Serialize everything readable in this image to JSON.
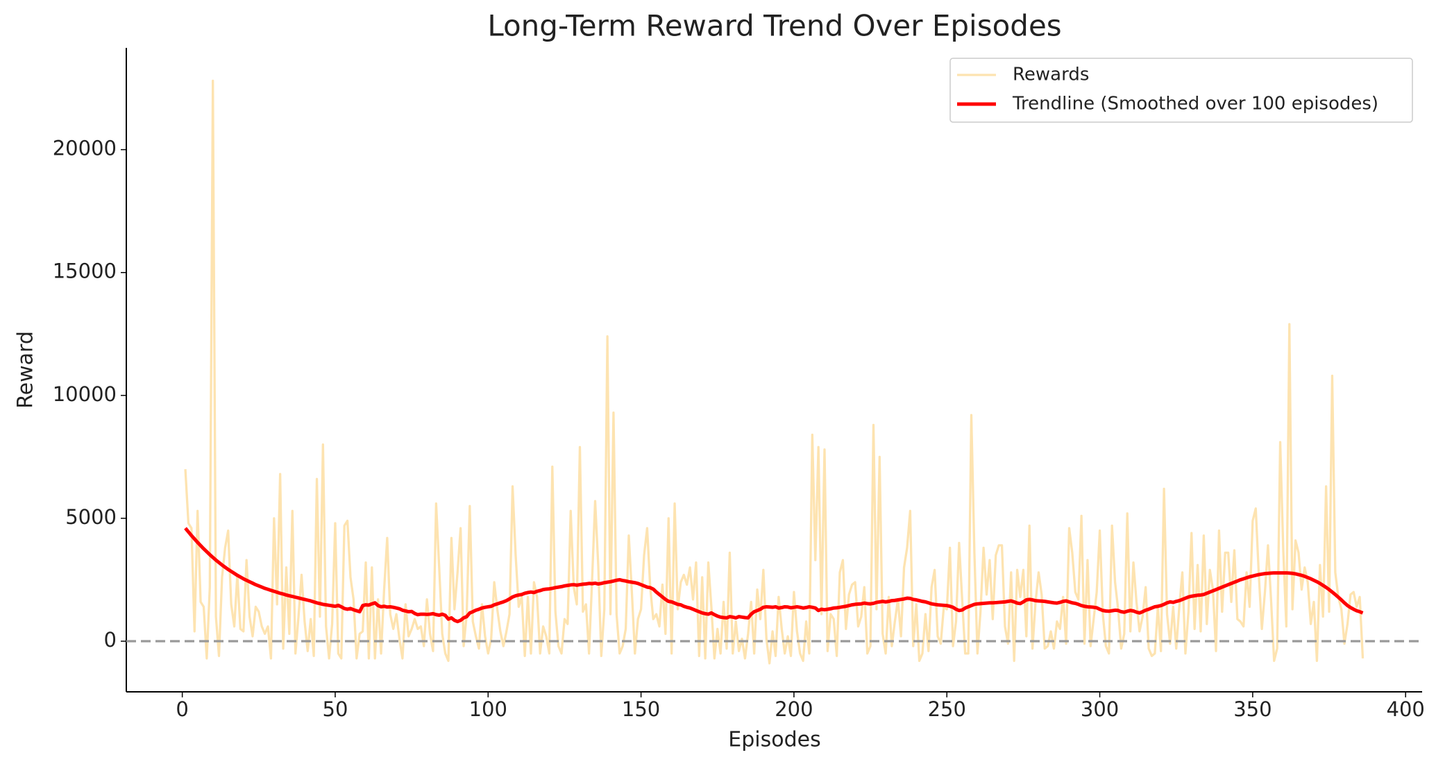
{
  "chart_data": {
    "type": "line",
    "title": "Long-Term Reward Trend Over Episodes",
    "xlabel": "Episodes",
    "ylabel": "Reward",
    "xlim": [
      -18.3,
      405.4
    ],
    "ylim": [
      -2060,
      24140
    ],
    "xticks": [
      0,
      50,
      100,
      150,
      200,
      250,
      300,
      350,
      400
    ],
    "yticks": [
      0,
      5000,
      10000,
      15000,
      20000
    ],
    "baseline": 0,
    "baseline_color": "#999999",
    "legend": "upper right",
    "x": [
      1,
      2,
      3,
      4,
      5,
      6,
      7,
      8,
      9,
      10,
      11,
      12,
      13,
      14,
      15,
      16,
      17,
      18,
      19,
      20,
      21,
      22,
      23,
      24,
      25,
      26,
      27,
      28,
      29,
      30,
      31,
      32,
      33,
      34,
      35,
      36,
      37,
      38,
      39,
      40,
      41,
      42,
      43,
      44,
      45,
      46,
      47,
      48,
      49,
      50,
      51,
      52,
      53,
      54,
      55,
      56,
      57,
      58,
      59,
      60,
      61,
      62,
      63,
      64,
      65,
      66,
      67,
      68,
      69,
      70,
      71,
      72,
      73,
      74,
      75,
      76,
      77,
      78,
      79,
      80,
      81,
      82,
      83,
      84,
      85,
      86,
      87,
      88,
      89,
      90,
      91,
      92,
      93,
      94,
      95,
      96,
      97,
      98,
      99,
      100,
      101,
      102,
      103,
      104,
      105,
      106,
      107,
      108,
      109,
      110,
      111,
      112,
      113,
      114,
      115,
      116,
      117,
      118,
      119,
      120,
      121,
      122,
      123,
      124,
      125,
      126,
      127,
      128,
      129,
      130,
      131,
      132,
      133,
      134,
      135,
      136,
      137,
      138,
      139,
      140,
      141,
      142,
      143,
      144,
      145,
      146,
      147,
      148,
      149,
      150,
      151,
      152,
      153,
      154,
      155,
      156,
      157,
      158,
      159,
      160,
      161,
      162,
      163,
      164,
      165,
      166,
      167,
      168,
      169,
      170,
      171,
      172,
      173,
      174,
      175,
      176,
      177,
      178,
      179,
      180,
      181,
      182,
      183,
      184,
      185,
      186,
      187,
      188,
      189,
      190,
      191,
      192,
      193,
      194,
      195,
      196,
      197,
      198,
      199,
      200,
      201,
      202,
      203,
      204,
      205,
      206,
      207,
      208,
      209,
      210,
      211,
      212,
      213,
      214,
      215,
      216,
      217,
      218,
      219,
      220,
      221,
      222,
      223,
      224,
      225,
      226,
      227,
      228,
      229,
      230,
      231,
      232,
      233,
      234,
      235,
      236,
      237,
      238,
      239,
      240,
      241,
      242,
      243,
      244,
      245,
      246,
      247,
      248,
      249,
      250,
      251,
      252,
      253,
      254,
      255,
      256,
      257,
      258,
      259,
      260,
      261,
      262,
      263,
      264,
      265,
      266,
      267,
      268,
      269,
      270,
      271,
      272,
      273,
      274,
      275,
      276,
      277,
      278,
      279,
      280,
      281,
      282,
      283,
      284,
      285,
      286,
      287,
      288,
      289,
      290,
      291,
      292,
      293,
      294,
      295,
      296,
      297,
      298,
      299,
      300,
      301,
      302,
      303,
      304,
      305,
      306,
      307,
      308,
      309,
      310,
      311,
      312,
      313,
      314,
      315,
      316,
      317,
      318,
      319,
      320,
      321,
      322,
      323,
      324,
      325,
      326,
      327,
      328,
      329,
      330,
      331,
      332,
      333,
      334,
      335,
      336,
      337,
      338,
      339,
      340,
      341,
      342,
      343,
      344,
      345,
      346,
      347,
      348,
      349,
      350,
      351,
      352,
      353,
      354,
      355,
      356,
      357,
      358,
      359,
      360,
      361,
      362,
      363,
      364,
      365,
      366,
      367,
      368,
      369,
      370,
      371,
      372,
      373,
      374,
      375,
      376,
      377,
      378,
      379,
      380,
      381,
      382,
      383,
      384,
      385,
      386
    ],
    "series": [
      {
        "name": "Rewards",
        "color": "#fde3b0",
        "values": [
          7000,
          4800,
          4600,
          400,
          5300,
          1600,
          1400,
          -700,
          2200,
          22800,
          1000,
          -600,
          2600,
          3800,
          4500,
          1500,
          600,
          2700,
          500,
          400,
          3300,
          1000,
          200,
          1400,
          1200,
          600,
          300,
          600,
          -700,
          5000,
          1500,
          6800,
          -300,
          3000,
          300,
          5300,
          -500,
          1000,
          2700,
          800,
          -400,
          900,
          -600,
          6600,
          1000,
          8000,
          600,
          -700,
          700,
          4800,
          -500,
          -700,
          4700,
          4900,
          2600,
          1700,
          -700,
          300,
          400,
          3200,
          -700,
          3000,
          -700,
          1700,
          -500,
          2100,
          4200,
          1100,
          500,
          1100,
          100,
          -700,
          1500,
          200,
          500,
          900,
          500,
          600,
          -200,
          1700,
          300,
          -400,
          5600,
          3000,
          300,
          -500,
          -800,
          4200,
          1300,
          2800,
          4600,
          -200,
          1100,
          5500,
          800,
          200,
          -300,
          1500,
          200,
          -500,
          100,
          2400,
          1300,
          400,
          -200,
          400,
          1100,
          6300,
          3500,
          1400,
          1800,
          -600,
          1800,
          -500,
          2400,
          1800,
          -500,
          600,
          200,
          -500,
          7100,
          1200,
          -200,
          -500,
          900,
          700,
          5300,
          2200,
          1500,
          7900,
          1200,
          1500,
          -500,
          2500,
          5700,
          3100,
          -600,
          1300,
          12400,
          1100,
          9300,
          1100,
          -500,
          -200,
          500,
          4300,
          2000,
          -500,
          900,
          1300,
          3500,
          4600,
          2200,
          900,
          1100,
          600,
          2300,
          300,
          5000,
          -500,
          5600,
          1300,
          2400,
          2700,
          2300,
          3000,
          1700,
          3200,
          -600,
          2600,
          -700,
          3200,
          1400,
          -700,
          500,
          -500,
          1600,
          -300,
          3600,
          -500,
          800,
          -400,
          100,
          -700,
          300,
          1600,
          -500,
          2100,
          900,
          2900,
          100,
          -900,
          400,
          -600,
          1800,
          500,
          -500,
          200,
          -600,
          2000,
          400,
          -500,
          -800,
          800,
          -500,
          8400,
          3300,
          7900,
          1100,
          7800,
          -400,
          1100,
          900,
          -600,
          2800,
          3300,
          500,
          1900,
          2300,
          2400,
          600,
          1000,
          2200,
          -500,
          -200,
          8800,
          1300,
          7500,
          300,
          -500,
          1800,
          -200,
          800,
          1700,
          200,
          3000,
          3800,
          5300,
          -200,
          1500,
          -800,
          -500,
          1100,
          -400,
          2200,
          2900,
          200,
          -100,
          1400,
          1300,
          3800,
          -200,
          800,
          4000,
          1700,
          -500,
          -500,
          9200,
          3600,
          -500,
          1200,
          3800,
          1900,
          3300,
          900,
          3500,
          3900,
          3900,
          600,
          -100,
          2800,
          -800,
          2900,
          1800,
          2900,
          200,
          4700,
          -300,
          1600,
          2800,
          1900,
          -300,
          -200,
          400,
          -300,
          800,
          500,
          1800,
          -100,
          4600,
          3600,
          2000,
          1700,
          5100,
          -100,
          3300,
          -200,
          900,
          2000,
          4500,
          1100,
          -200,
          -500,
          4700,
          2400,
          1300,
          -300,
          300,
          5200,
          400,
          3200,
          1600,
          400,
          1000,
          2200,
          -300,
          -600,
          -500,
          1400,
          -400,
          6200,
          1100,
          -100,
          1400,
          -300,
          1400,
          2800,
          -500,
          1200,
          4400,
          500,
          3100,
          400,
          4300,
          700,
          2900,
          2100,
          -400,
          4500,
          1200,
          3600,
          3600,
          1600,
          3700,
          900,
          800,
          600,
          2800,
          1400,
          4900,
          5400,
          2700,
          500,
          2000,
          3900,
          1700,
          -800,
          -300,
          8100,
          3700,
          600,
          12900,
          1300,
          4100,
          3600,
          2100,
          3000,
          2400,
          700,
          1600,
          -800,
          3100,
          1000,
          6300,
          1200,
          10800,
          2800,
          1800,
          1300,
          -100,
          700,
          1900,
          2000,
          1400,
          1800,
          -700
        ]
      },
      {
        "name": "Trendline (Smoothed over 100 episodes)",
        "color": "#ff0000",
        "values": [
          4600,
          4450,
          4300,
          4160,
          4020,
          3890,
          3760,
          3640,
          3520,
          3410,
          3300,
          3200,
          3100,
          3010,
          2920,
          2840,
          2760,
          2680,
          2610,
          2540,
          2480,
          2420,
          2360,
          2300,
          2250,
          2200,
          2150,
          2110,
          2070,
          2030,
          1990,
          1950,
          1920,
          1880,
          1850,
          1820,
          1790,
          1760,
          1730,
          1700,
          1670,
          1640,
          1600,
          1560,
          1530,
          1500,
          1480,
          1460,
          1440,
          1420,
          1460,
          1400,
          1330,
          1300,
          1330,
          1280,
          1240,
          1200,
          1450,
          1480,
          1470,
          1520,
          1560,
          1450,
          1400,
          1420,
          1390,
          1400,
          1380,
          1350,
          1320,
          1260,
          1230,
          1200,
          1210,
          1130,
          1080,
          1100,
          1100,
          1090,
          1100,
          1120,
          1080,
          1060,
          1100,
          1050,
          900,
          950,
          850,
          800,
          850,
          950,
          1000,
          1150,
          1200,
          1260,
          1300,
          1350,
          1380,
          1400,
          1420,
          1480,
          1520,
          1560,
          1600,
          1650,
          1720,
          1800,
          1850,
          1880,
          1900,
          1950,
          1980,
          2000,
          1980,
          2030,
          2060,
          2100,
          2120,
          2130,
          2150,
          2180,
          2200,
          2220,
          2250,
          2270,
          2290,
          2300,
          2280,
          2300,
          2320,
          2330,
          2350,
          2340,
          2360,
          2330,
          2350,
          2380,
          2400,
          2420,
          2450,
          2480,
          2500,
          2470,
          2450,
          2420,
          2400,
          2380,
          2350,
          2300,
          2250,
          2200,
          2180,
          2120,
          2000,
          1900,
          1800,
          1700,
          1620,
          1600,
          1550,
          1500,
          1480,
          1420,
          1380,
          1350,
          1300,
          1250,
          1200,
          1150,
          1120,
          1100,
          1150,
          1080,
          1020,
          980,
          960,
          950,
          1000,
          980,
          950,
          1000,
          980,
          960,
          950,
          1100,
          1200,
          1250,
          1300,
          1380,
          1400,
          1390,
          1380,
          1400,
          1350,
          1370,
          1400,
          1390,
          1360,
          1380,
          1400,
          1380,
          1350,
          1370,
          1400,
          1380,
          1350,
          1250,
          1300,
          1280,
          1300,
          1320,
          1350,
          1360,
          1380,
          1400,
          1420,
          1450,
          1480,
          1500,
          1510,
          1520,
          1550,
          1530,
          1520,
          1540,
          1580,
          1600,
          1620,
          1600,
          1620,
          1650,
          1660,
          1680,
          1700,
          1720,
          1750,
          1740,
          1700,
          1680,
          1650,
          1620,
          1600,
          1560,
          1520,
          1500,
          1480,
          1470,
          1460,
          1450,
          1420,
          1380,
          1300,
          1250,
          1270,
          1350,
          1400,
          1450,
          1500,
          1520,
          1530,
          1540,
          1550,
          1560,
          1560,
          1570,
          1580,
          1590,
          1600,
          1620,
          1640,
          1600,
          1550,
          1530,
          1600,
          1680,
          1700,
          1680,
          1650,
          1640,
          1630,
          1620,
          1600,
          1580,
          1560,
          1550,
          1580,
          1620,
          1640,
          1600,
          1560,
          1540,
          1500,
          1450,
          1420,
          1400,
          1390,
          1380,
          1360,
          1300,
          1250,
          1230,
          1220,
          1240,
          1260,
          1250,
          1200,
          1180,
          1220,
          1250,
          1230,
          1180,
          1150,
          1200,
          1260,
          1300,
          1350,
          1400,
          1420,
          1450,
          1500,
          1560,
          1600,
          1580,
          1620,
          1650,
          1700,
          1750,
          1800,
          1830,
          1850,
          1870,
          1880,
          1900,
          1950,
          2000,
          2050,
          2100,
          2150,
          2200,
          2250,
          2300,
          2350,
          2400,
          2450,
          2500,
          2540,
          2580,
          2620,
          2650,
          2680,
          2710,
          2730,
          2750,
          2760,
          2770,
          2780,
          2780,
          2780,
          2780,
          2780,
          2770,
          2760,
          2740,
          2710,
          2680,
          2640,
          2590,
          2540,
          2480,
          2420,
          2350,
          2270,
          2190,
          2100,
          2000,
          1900,
          1790,
          1680,
          1560,
          1450,
          1370,
          1300,
          1240,
          1200,
          1150
        ]
      }
    ]
  }
}
